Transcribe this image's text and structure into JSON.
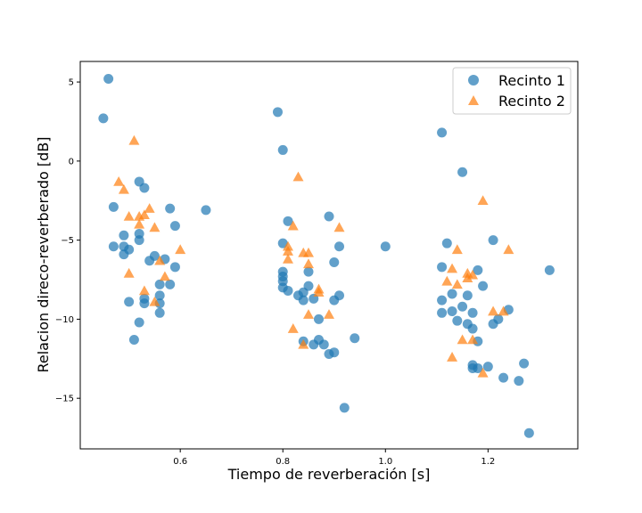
{
  "chart_data": {
    "type": "scatter",
    "title": "",
    "xlabel": "Tiempo de reverberación [s]",
    "ylabel": "Relacion direco-reverberado [dB]",
    "xlim": [
      0.405,
      1.375
    ],
    "ylim": [
      -18.2,
      6.3
    ],
    "xticks": [
      0.6,
      0.8,
      1.0,
      1.2
    ],
    "xtick_labels": [
      "0.6",
      "0.8",
      "1.0",
      "1.2"
    ],
    "yticks": [
      5,
      0,
      -5,
      -10,
      -15
    ],
    "ytick_labels": [
      "5",
      "0",
      "−5",
      "−10",
      "−15"
    ],
    "grid": false,
    "legend_position": "top-right",
    "series": [
      {
        "name": "Recinto 1",
        "marker": "circle",
        "color": "#1f77b4",
        "points": [
          [
            0.46,
            5.2
          ],
          [
            0.45,
            2.7
          ],
          [
            0.47,
            -2.9
          ],
          [
            0.47,
            -5.4
          ],
          [
            0.49,
            -4.7
          ],
          [
            0.49,
            -5.4
          ],
          [
            0.49,
            -5.9
          ],
          [
            0.5,
            -5.6
          ],
          [
            0.5,
            -8.9
          ],
          [
            0.51,
            -11.3
          ],
          [
            0.52,
            -10.2
          ],
          [
            0.52,
            -5.0
          ],
          [
            0.52,
            -4.6
          ],
          [
            0.52,
            -1.3
          ],
          [
            0.53,
            -1.7
          ],
          [
            0.53,
            -8.7
          ],
          [
            0.53,
            -9.0
          ],
          [
            0.54,
            -6.3
          ],
          [
            0.55,
            -6.0
          ],
          [
            0.56,
            -7.8
          ],
          [
            0.56,
            -8.5
          ],
          [
            0.56,
            -9.0
          ],
          [
            0.56,
            -9.6
          ],
          [
            0.57,
            -6.2
          ],
          [
            0.58,
            -7.8
          ],
          [
            0.58,
            -3.0
          ],
          [
            0.59,
            -4.1
          ],
          [
            0.59,
            -6.7
          ],
          [
            0.65,
            -3.1
          ],
          [
            0.79,
            3.1
          ],
          [
            0.8,
            0.7
          ],
          [
            0.8,
            -5.2
          ],
          [
            0.8,
            -7.3
          ],
          [
            0.8,
            -7.6
          ],
          [
            0.8,
            -8.0
          ],
          [
            0.8,
            -7.0
          ],
          [
            0.81,
            -8.2
          ],
          [
            0.81,
            -3.8
          ],
          [
            0.83,
            -8.5
          ],
          [
            0.84,
            -8.3
          ],
          [
            0.84,
            -11.4
          ],
          [
            0.84,
            -8.8
          ],
          [
            0.85,
            -7.9
          ],
          [
            0.85,
            -7.0
          ],
          [
            0.86,
            -11.6
          ],
          [
            0.86,
            -8.7
          ],
          [
            0.87,
            -11.3
          ],
          [
            0.87,
            -10.0
          ],
          [
            0.88,
            -11.6
          ],
          [
            0.89,
            -12.2
          ],
          [
            0.89,
            -3.5
          ],
          [
            0.9,
            -12.1
          ],
          [
            0.9,
            -6.4
          ],
          [
            0.9,
            -8.8
          ],
          [
            0.91,
            -8.5
          ],
          [
            0.91,
            -5.4
          ],
          [
            0.92,
            -15.6
          ],
          [
            0.94,
            -11.2
          ],
          [
            1.0,
            -5.4
          ],
          [
            1.11,
            1.8
          ],
          [
            1.15,
            -0.7
          ],
          [
            1.11,
            -8.8
          ],
          [
            1.11,
            -9.6
          ],
          [
            1.11,
            -6.7
          ],
          [
            1.12,
            -5.2
          ],
          [
            1.13,
            -9.5
          ],
          [
            1.13,
            -8.4
          ],
          [
            1.14,
            -10.1
          ],
          [
            1.15,
            -9.2
          ],
          [
            1.16,
            -8.5
          ],
          [
            1.16,
            -10.3
          ],
          [
            1.17,
            -9.6
          ],
          [
            1.17,
            -10.6
          ],
          [
            1.17,
            -12.9
          ],
          [
            1.17,
            -13.1
          ],
          [
            1.18,
            -13.1
          ],
          [
            1.18,
            -11.4
          ],
          [
            1.18,
            -6.9
          ],
          [
            1.19,
            -7.9
          ],
          [
            1.2,
            -13.0
          ],
          [
            1.21,
            -10.3
          ],
          [
            1.21,
            -5.0
          ],
          [
            1.22,
            -10.0
          ],
          [
            1.23,
            -13.7
          ],
          [
            1.24,
            -9.4
          ],
          [
            1.26,
            -13.9
          ],
          [
            1.27,
            -12.8
          ],
          [
            1.28,
            -17.2
          ],
          [
            1.32,
            -6.9
          ]
        ]
      },
      {
        "name": "Recinto 2",
        "marker": "triangle",
        "color": "#ff7f0e",
        "points": [
          [
            0.48,
            -1.3
          ],
          [
            0.49,
            -1.8
          ],
          [
            0.5,
            -3.5
          ],
          [
            0.5,
            -7.1
          ],
          [
            0.51,
            1.3
          ],
          [
            0.52,
            -4.0
          ],
          [
            0.52,
            -3.5
          ],
          [
            0.53,
            -8.2
          ],
          [
            0.53,
            -3.4
          ],
          [
            0.54,
            -3.0
          ],
          [
            0.55,
            -4.2
          ],
          [
            0.55,
            -8.9
          ],
          [
            0.56,
            -6.3
          ],
          [
            0.57,
            -7.3
          ],
          [
            0.6,
            -5.6
          ],
          [
            0.81,
            -6.2
          ],
          [
            0.81,
            -5.4
          ],
          [
            0.81,
            -5.7
          ],
          [
            0.82,
            -4.1
          ],
          [
            0.82,
            -10.6
          ],
          [
            0.83,
            -1.0
          ],
          [
            0.84,
            -5.8
          ],
          [
            0.84,
            -11.6
          ],
          [
            0.85,
            -5.8
          ],
          [
            0.85,
            -6.5
          ],
          [
            0.85,
            -9.7
          ],
          [
            0.87,
            -8.1
          ],
          [
            0.87,
            -8.3
          ],
          [
            0.89,
            -9.7
          ],
          [
            0.91,
            -4.2
          ],
          [
            1.12,
            -7.6
          ],
          [
            1.13,
            -6.8
          ],
          [
            1.13,
            -12.4
          ],
          [
            1.14,
            -5.6
          ],
          [
            1.14,
            -7.8
          ],
          [
            1.15,
            -11.3
          ],
          [
            1.16,
            -7.1
          ],
          [
            1.16,
            -7.4
          ],
          [
            1.17,
            -7.2
          ],
          [
            1.17,
            -11.3
          ],
          [
            1.19,
            -2.5
          ],
          [
            1.19,
            -13.4
          ],
          [
            1.21,
            -9.5
          ],
          [
            1.23,
            -9.5
          ],
          [
            1.24,
            -5.6
          ]
        ]
      }
    ]
  }
}
